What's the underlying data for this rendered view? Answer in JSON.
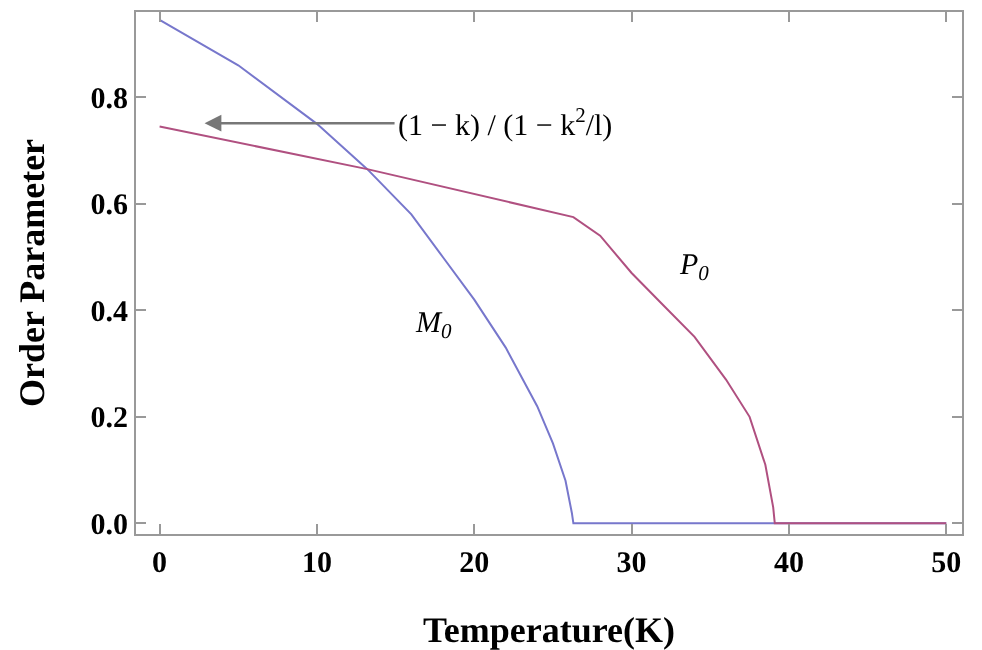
{
  "chart_data": {
    "type": "line",
    "xlabel": "Temperature(K)",
    "ylabel": "Order Parameter",
    "xlim": [
      -1.5,
      51
    ],
    "ylim": [
      -0.02,
      0.96
    ],
    "xticks": [
      0,
      10,
      20,
      30,
      40,
      50
    ],
    "yticks": [
      {
        "value": 0,
        "label": "0.0"
      },
      {
        "value": 0.2,
        "label": "0.2"
      },
      {
        "value": 0.4,
        "label": "0.4"
      },
      {
        "value": 0.6,
        "label": "0.6"
      },
      {
        "value": 0.8,
        "label": "0.8"
      }
    ],
    "grid": false,
    "marker": "none",
    "line_style": "solid",
    "series": [
      {
        "color": "#7777cc",
        "x": [
          0,
          5,
          10,
          13.2,
          16,
          18,
          20,
          22,
          24,
          25,
          25.8,
          26.2,
          26.3,
          50
        ],
        "values": [
          0.945,
          0.86,
          0.75,
          0.665,
          0.58,
          0.5,
          0.42,
          0.33,
          0.22,
          0.15,
          0.08,
          0.02,
          0,
          0
        ]
      },
      {
        "color": "#b05080",
        "x": [
          0,
          13.2,
          26.3,
          28,
          30,
          32,
          34,
          36,
          37.5,
          38.5,
          39,
          39.1,
          50
        ],
        "values": [
          0.745,
          0.665,
          0.575,
          0.54,
          0.47,
          0.41,
          0.35,
          0.27,
          0.2,
          0.11,
          0.03,
          0,
          0
        ]
      }
    ],
    "annotations": [
      "M$_{0}$",
      "P$_{0}$",
      "(1 − k) / (1 − k$^{2}$/l)"
    ]
  }
}
